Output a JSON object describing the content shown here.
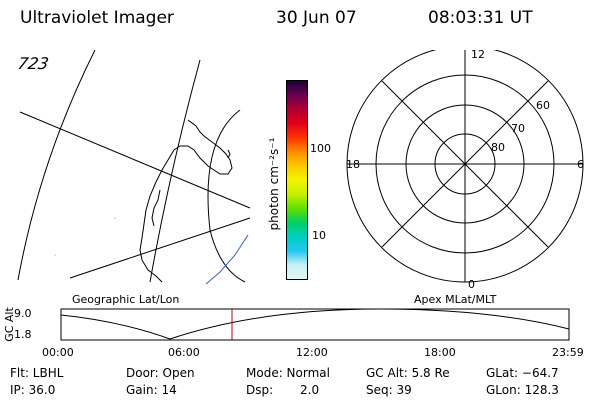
{
  "header": {
    "instrument": "Ultraviolet Imager",
    "date": "30 Jun 07",
    "time": "08:03:31 UT"
  },
  "geo_panel": {
    "corner_label": "723",
    "caption": "Geographic Lat/Lon"
  },
  "colorbar": {
    "label": "photon cm⁻²s⁻¹",
    "ticks": [
      "100",
      "10"
    ],
    "colors": [
      "#1a0033",
      "#6a0050",
      "#b00030",
      "#e0001a",
      "#ff3300",
      "#ff8a00",
      "#ffc800",
      "#f4f400",
      "#c8f000",
      "#60e000",
      "#00d060",
      "#00d0c0",
      "#20c8f0",
      "#c8f0f4",
      "#e6f6f6"
    ]
  },
  "polar_panel": {
    "caption": "Apex MLat/MLT",
    "mlt_labels": {
      "top": "12",
      "left": "18",
      "right": "6",
      "bottom": "0"
    },
    "lat_labels": [
      "60",
      "70",
      "80"
    ]
  },
  "altitude_plot": {
    "ylabel": "GC Alt",
    "yticks": [
      "9.0",
      "1.8"
    ],
    "xticks": [
      "00:00",
      "06:00",
      "12:00",
      "18:00",
      "23:59"
    ],
    "current_time_marker_color": "#c00000"
  },
  "info": {
    "row1": {
      "flt": "Flt: LBHL",
      "door": "Door: Open",
      "mode": "Mode: Normal",
      "gcalt": "GC Alt: 5.8 Re",
      "glat": "GLat: −64.7"
    },
    "row2": {
      "ip": "IP: 36.0",
      "gain": "Gain: 14",
      "dsp": "Dsp:",
      "dsp_val": "2.0",
      "seq": "Seq: 39",
      "glon": "GLon: 128.3"
    }
  }
}
